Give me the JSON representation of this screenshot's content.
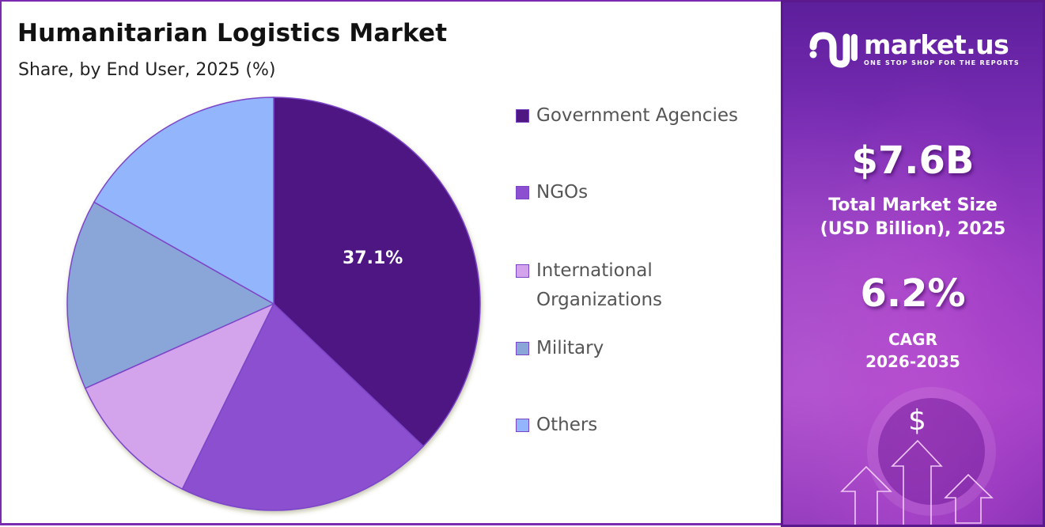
{
  "header": {
    "title": "Humanitarian Logistics Market",
    "subtitle": "Share, by End User, 2025 (%)"
  },
  "pie": {
    "highlight_label": "37.1%"
  },
  "legend": {
    "items": [
      {
        "label": "Government Agencies",
        "color": "#4e1782"
      },
      {
        "label": "NGOs",
        "color": "#8b4fcf"
      },
      {
        "label": "International Organizations",
        "color": "#d3a3ec"
      },
      {
        "label": "Military",
        "color": "#8aa6d9"
      },
      {
        "label": "Others",
        "color": "#93b5fc"
      }
    ]
  },
  "brand": {
    "name": "market.us",
    "tagline": "ONE STOP SHOP FOR THE REPORTS"
  },
  "stats": {
    "market_size_value": "$7.6B",
    "market_size_label_line1": "Total Market Size",
    "market_size_label_line2": "(USD Billion), 2025",
    "cagr_value": "6.2%",
    "cagr_label_line1": "CAGR",
    "cagr_label_line2": "2026-2035"
  },
  "decor": {
    "dollar_icon": "$"
  },
  "colors": {
    "frame_border": "#7a2bb0",
    "slice_outline": "#7b45c8",
    "right_panel_top": "#5d1f9c",
    "right_panel_mid": "#a843c9"
  },
  "chart_data": {
    "type": "pie",
    "title": "Humanitarian Logistics Market",
    "subtitle": "Share, by End User, 2025 (%)",
    "categories": [
      "Government Agencies",
      "NGOs",
      "International Organizations",
      "Military",
      "Others"
    ],
    "values": [
      37.1,
      20.2,
      11.0,
      14.9,
      16.8
    ],
    "colors": [
      "#4e1782",
      "#8b4fcf",
      "#d3a3ec",
      "#8aa6d9",
      "#93b5fc"
    ],
    "annotations": [
      {
        "category": "Government Agencies",
        "text": "37.1%"
      }
    ],
    "start_angle": "12 o'clock, clockwise",
    "legend_position": "right"
  }
}
